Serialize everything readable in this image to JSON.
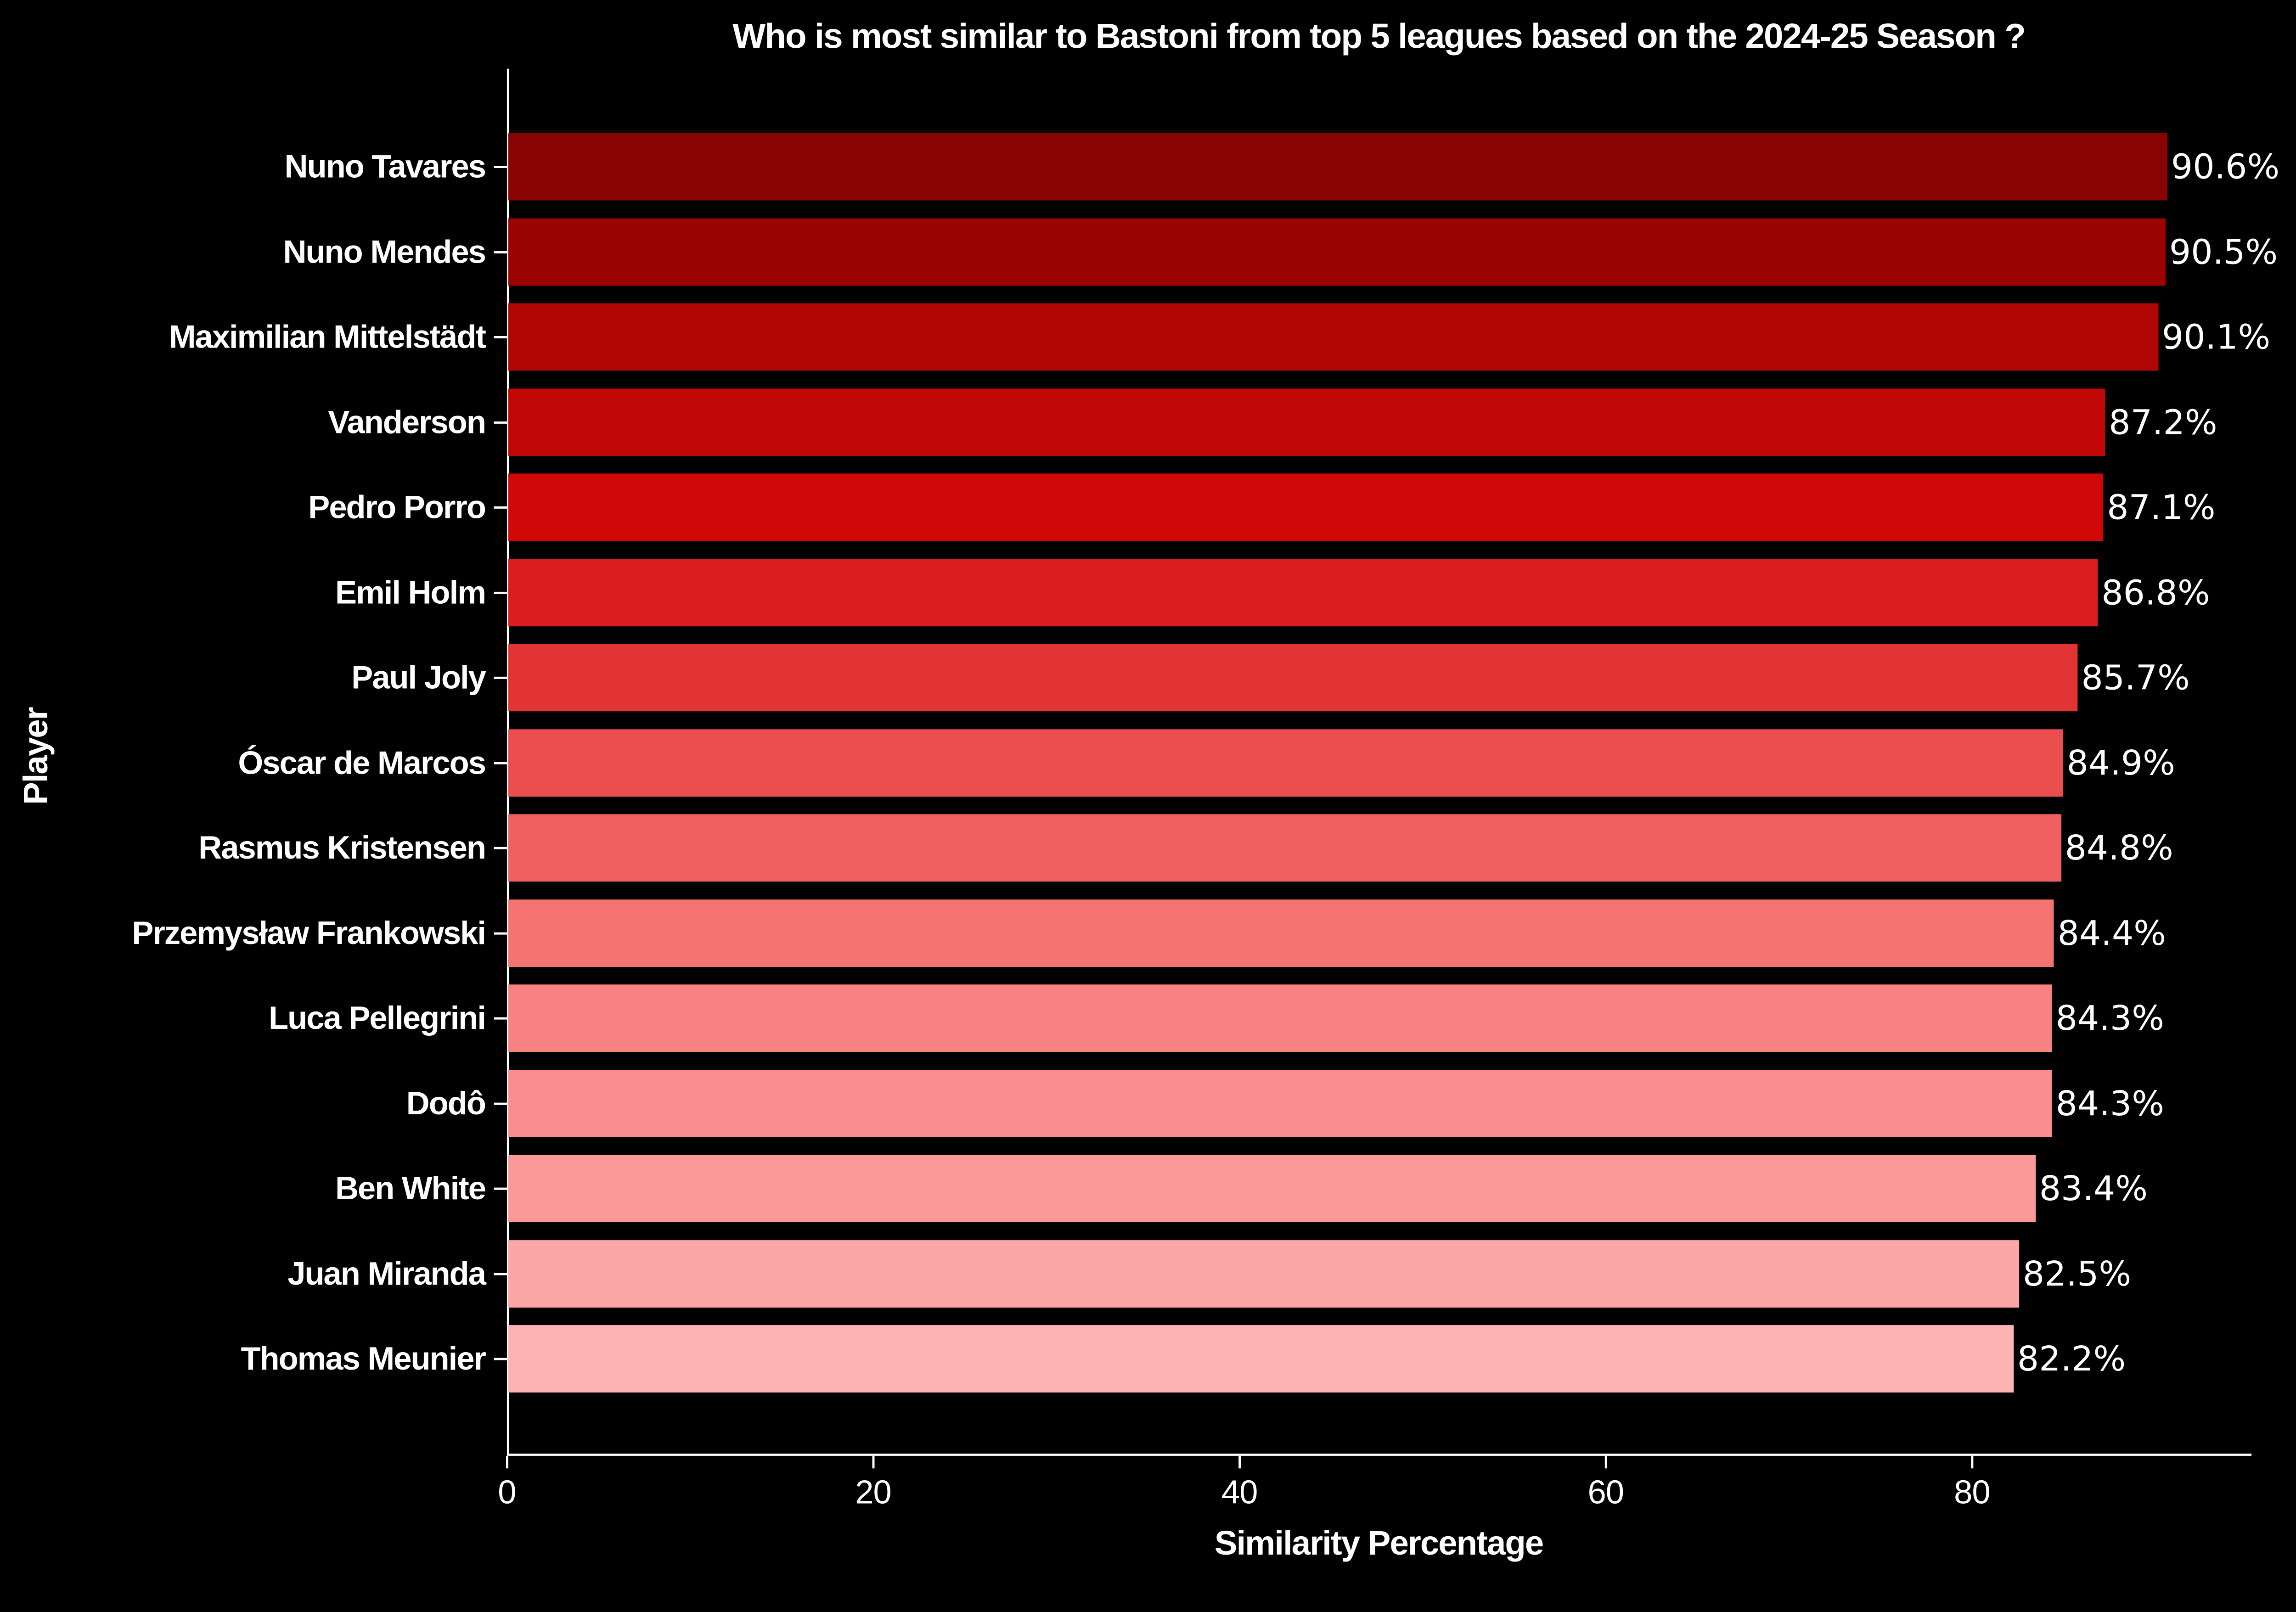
{
  "title": "Who is most similar to Bastoni from top 5 leagues based on the 2024-25 Season ?",
  "chart_data": {
    "type": "bar",
    "orientation": "horizontal",
    "title": "Who is most similar to Bastoni from top 5 leagues based on the 2024-25 Season ?",
    "xlabel": "Similarity Percentage",
    "ylabel": "Player",
    "xlim": [
      0,
      95.2
    ],
    "x_ticks": [
      0,
      20,
      40,
      60,
      80
    ],
    "grid": false,
    "legend": false,
    "background_color": "#000000",
    "text_color": "#ffffff",
    "categories": [
      "Nuno Tavares",
      "Nuno Mendes",
      "Maximilian Mittelstädt",
      "Vanderson",
      "Pedro Porro",
      "Emil Holm",
      "Paul Joly",
      "Óscar de Marcos",
      "Rasmus Kristensen",
      "Przemysław Frankowski",
      "Luca Pellegrini",
      "Dodô",
      "Ben White",
      "Juan Miranda",
      "Thomas Meunier"
    ],
    "values": [
      90.6,
      90.5,
      90.1,
      87.2,
      87.1,
      86.8,
      85.7,
      84.9,
      84.8,
      84.4,
      84.3,
      84.3,
      83.4,
      82.5,
      82.2
    ],
    "value_labels": [
      "90.6%",
      "90.5%",
      "90.1%",
      "87.2%",
      "87.1%",
      "86.8%",
      "85.7%",
      "84.9%",
      "84.8%",
      "84.4%",
      "84.3%",
      "84.3%",
      "83.4%",
      "82.5%",
      "82.2%"
    ],
    "bar_colors": [
      "#880404",
      "#9c0303",
      "#af0505",
      "#c20707",
      "#d00808",
      "#db1d1d",
      "#e23434",
      "#eb4e4e",
      "#ef6161",
      "#f47373",
      "#f88181",
      "#fa8d8d",
      "#fb9999",
      "#fca7a7",
      "#fdb3b3"
    ]
  }
}
